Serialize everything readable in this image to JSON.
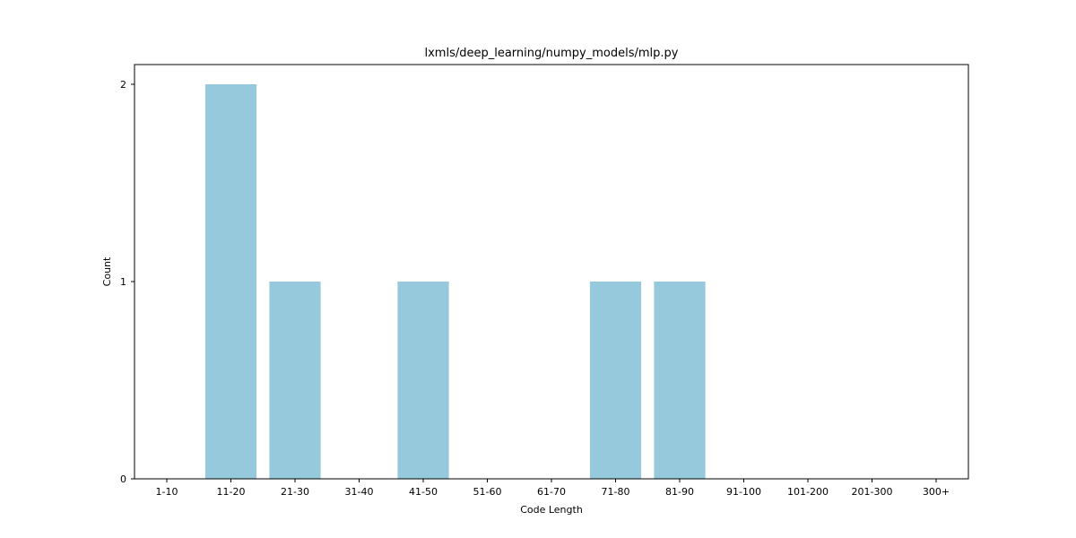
{
  "chart_data": {
    "type": "bar",
    "title": "lxmls/deep_learning/numpy_models/mlp.py",
    "xlabel": "Code Length",
    "ylabel": "Count",
    "categories": [
      "1-10",
      "11-20",
      "21-30",
      "31-40",
      "41-50",
      "51-60",
      "61-70",
      "71-80",
      "81-90",
      "91-100",
      "101-200",
      "201-300",
      "300+"
    ],
    "values": [
      0,
      2,
      1,
      0,
      1,
      0,
      0,
      1,
      1,
      0,
      0,
      0,
      0
    ],
    "ylim": [
      0,
      2
    ],
    "yticks": [
      "0",
      "1",
      "2"
    ],
    "grid": false,
    "colors": {
      "bar": "#96c9dc",
      "axis": "#000000"
    }
  }
}
